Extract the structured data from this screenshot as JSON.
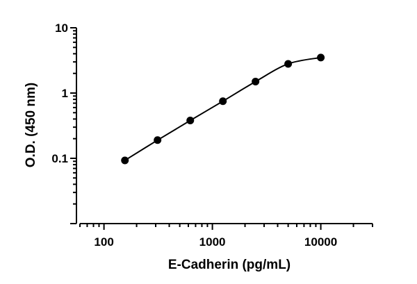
{
  "chart_data": {
    "type": "scatter",
    "xlabel": "E-Cadherin (pg/mL)",
    "ylabel": "O.D. (450 nm)",
    "x_scale": "log",
    "y_scale": "log",
    "xlim": [
      60,
      30000
    ],
    "ylim": [
      0.01,
      10
    ],
    "x_ticks": [
      {
        "value": 100,
        "label": "100"
      },
      {
        "value": 1000,
        "label": "1000"
      },
      {
        "value": 10000,
        "label": "10000"
      }
    ],
    "y_ticks": [
      {
        "value": 0.1,
        "label": "0.1"
      },
      {
        "value": 1,
        "label": "1"
      },
      {
        "value": 10,
        "label": "10"
      }
    ],
    "grid": false,
    "series": [
      {
        "x": [
          156,
          312,
          625,
          1250,
          2500,
          5000,
          10000
        ],
        "y": [
          0.093,
          0.19,
          0.38,
          0.75,
          1.5,
          2.8,
          3.5
        ],
        "fit_curve": true
      }
    ]
  }
}
